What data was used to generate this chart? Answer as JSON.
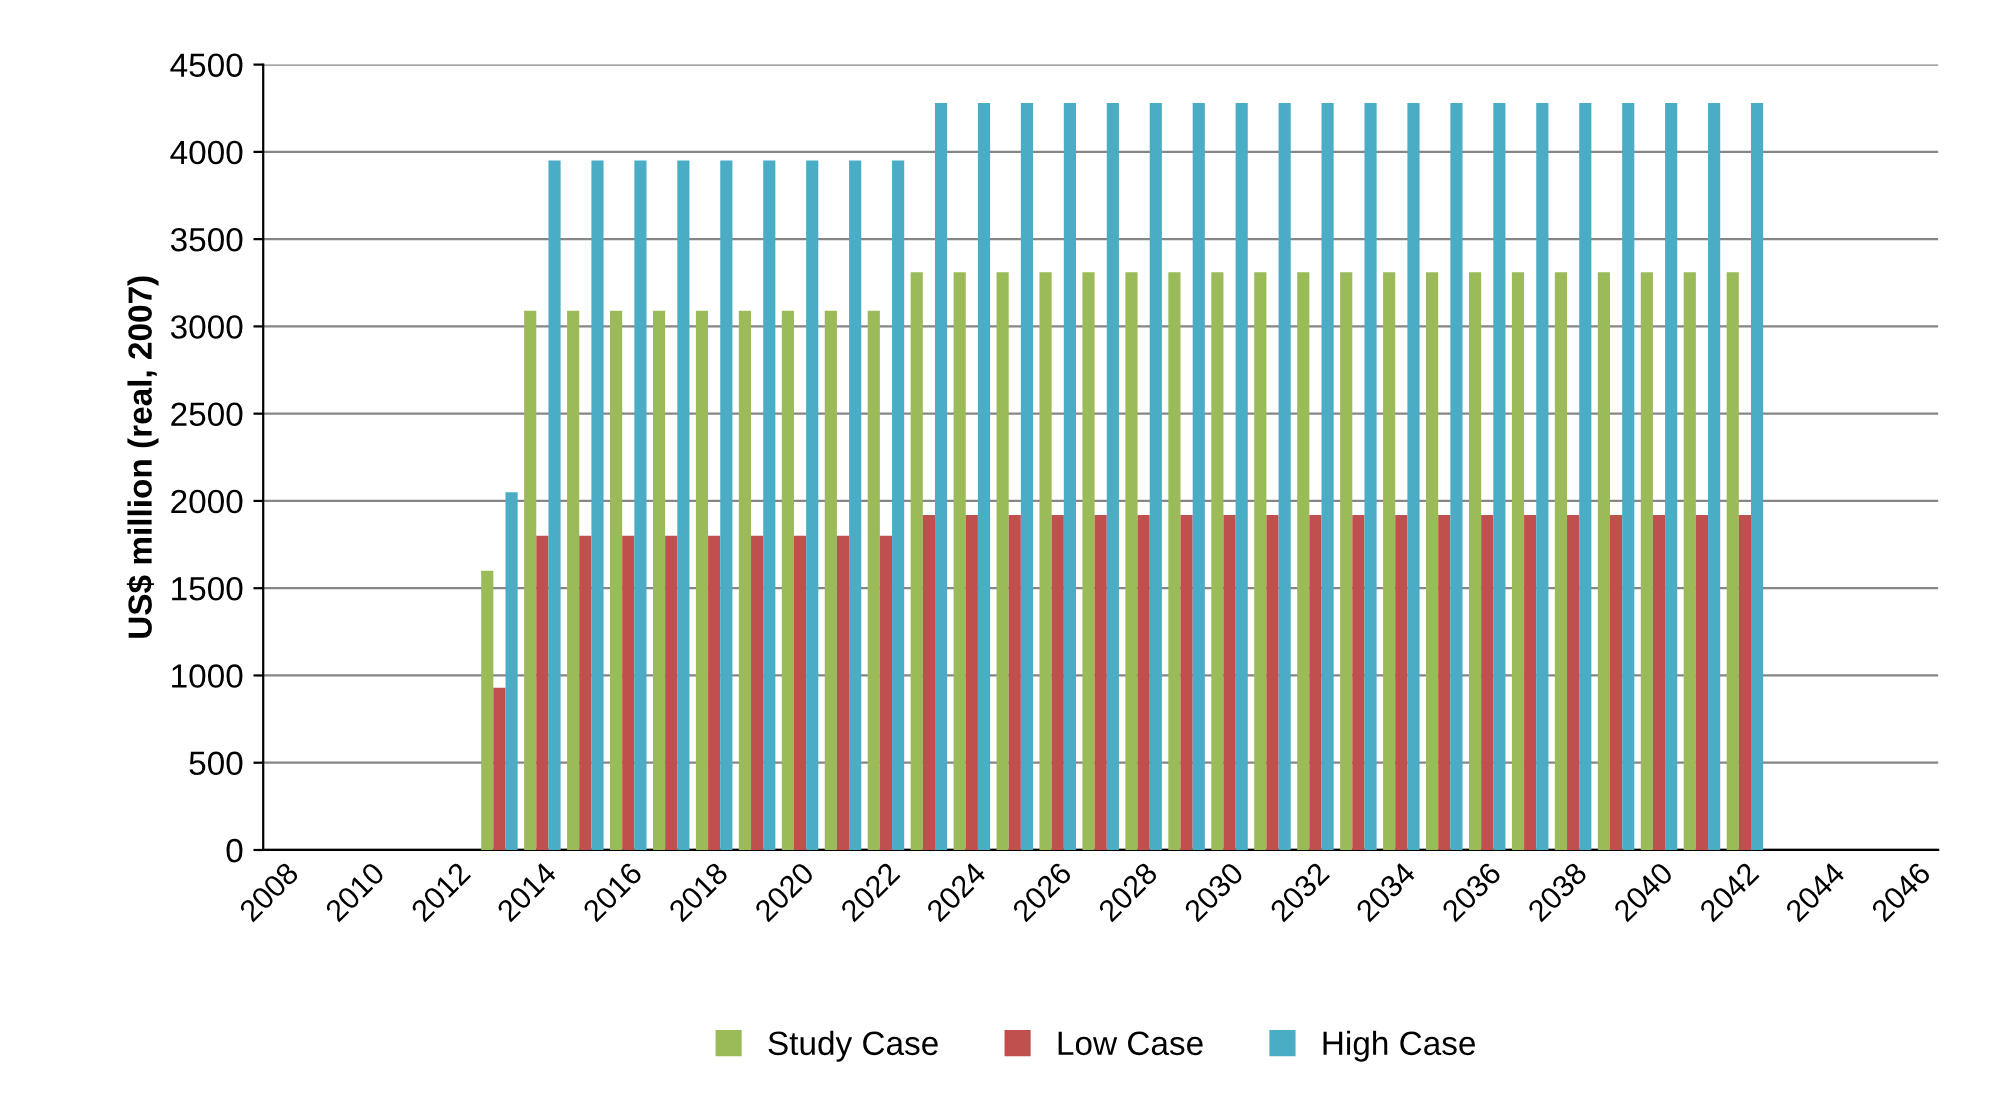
{
  "chart_data": {
    "type": "bar",
    "ylabel": "US$ million (real, 2007)",
    "categories": [
      "2008",
      null,
      "2010",
      null,
      "2012",
      null,
      "2014",
      null,
      "2016",
      null,
      "2018",
      null,
      "2020",
      null,
      "2022",
      null,
      "2024",
      null,
      "2026",
      null,
      "2028",
      null,
      "2030",
      null,
      "2032",
      null,
      "2034",
      null,
      "2036",
      null,
      "2038",
      null,
      "2040",
      null,
      "2042",
      null,
      "2044",
      null,
      "2046"
    ],
    "series": [
      {
        "name": "Study Case",
        "color": "#9bbb59",
        "values": [
          null,
          null,
          null,
          null,
          null,
          1600,
          3090,
          3090,
          3090,
          3090,
          3090,
          3090,
          3090,
          3090,
          3090,
          3310,
          3310,
          3310,
          3310,
          3310,
          3310,
          3310,
          3310,
          3310,
          3310,
          3310,
          3310,
          3310,
          3310,
          3310,
          3310,
          3310,
          3310,
          3310,
          3310,
          null,
          null,
          null,
          null
        ]
      },
      {
        "name": "Low Case",
        "color": "#c0504d",
        "values": [
          null,
          null,
          null,
          null,
          null,
          930,
          1800,
          1800,
          1800,
          1800,
          1800,
          1800,
          1800,
          1800,
          1800,
          1920,
          1920,
          1920,
          1920,
          1920,
          1920,
          1920,
          1920,
          1920,
          1920,
          1920,
          1920,
          1920,
          1920,
          1920,
          1920,
          1920,
          1920,
          1920,
          1920,
          null,
          null,
          null,
          null
        ]
      },
      {
        "name": "High Case",
        "color": "#4bacc6",
        "values": [
          null,
          null,
          null,
          null,
          null,
          2050,
          3950,
          3950,
          3950,
          3950,
          3950,
          3950,
          3950,
          3950,
          3950,
          4280,
          4280,
          4280,
          4280,
          4280,
          4280,
          4280,
          4280,
          4280,
          4280,
          4280,
          4280,
          4280,
          4280,
          4280,
          4280,
          4280,
          4280,
          4280,
          4280,
          null,
          null,
          null,
          null
        ]
      }
    ],
    "ylim": [
      0,
      4500
    ],
    "yticks": [
      0,
      500,
      1000,
      1500,
      2000,
      2500,
      3000,
      3500,
      4000,
      4500
    ],
    "grid": "y",
    "legend": "bottom"
  }
}
